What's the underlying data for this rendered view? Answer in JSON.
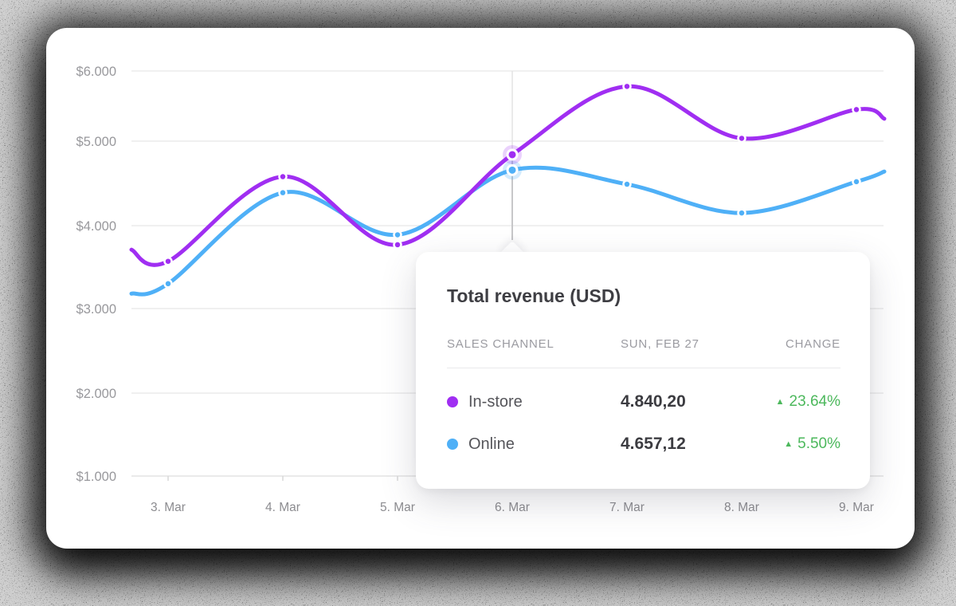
{
  "chart_data": {
    "type": "line",
    "title": "Total revenue (USD)",
    "x_labels": [
      "3. Mar",
      "4. Mar",
      "5. Mar",
      "6. Mar",
      "7. Mar",
      "8. Mar",
      "9. Mar"
    ],
    "y_ticks": [
      {
        "label": "$1.000",
        "value": 1000
      },
      {
        "label": "$2.000",
        "value": 2000
      },
      {
        "label": "$3.000",
        "value": 3000
      },
      {
        "label": "$4.000",
        "value": 4000
      },
      {
        "label": "$5.000",
        "value": 5000
      },
      {
        "label": "$6.000",
        "value": 6000
      }
    ],
    "ylim": [
      1000,
      6000
    ],
    "grid": "horizontal",
    "legend": "none",
    "active_index": 3,
    "series": [
      {
        "name": "Online",
        "color": "#4fb0f7",
        "halo_color": "rgba(79,176,247,0.25)",
        "values": [
          3300,
          4390,
          3890,
          4657.12,
          4490,
          4150,
          4520
        ],
        "edge_start_value": 3180,
        "edge_end_value": 4640
      },
      {
        "name": "In-store",
        "color": "#a02ef2",
        "halo_color": "rgba(160,46,242,0.22)",
        "values": [
          3570,
          4580,
          3770,
          4840.2,
          5780,
          5040,
          5450
        ],
        "edge_start_value": 3710,
        "edge_end_value": 5320
      }
    ]
  },
  "tooltip": {
    "title": "Total revenue (USD)",
    "columns": [
      "SALES CHANNEL",
      "SUN, FEB 27",
      "CHANGE"
    ],
    "rows": [
      {
        "channel": "In-store",
        "color": "#a02ef2",
        "value": "4.840,20",
        "change": "23.64%",
        "direction": "up"
      },
      {
        "channel": "Online",
        "color": "#4fb0f7",
        "value": "4.657,12",
        "change": "5.50%",
        "direction": "up"
      }
    ],
    "up_arrow": "▲",
    "positive_color": "#4cb85c"
  }
}
